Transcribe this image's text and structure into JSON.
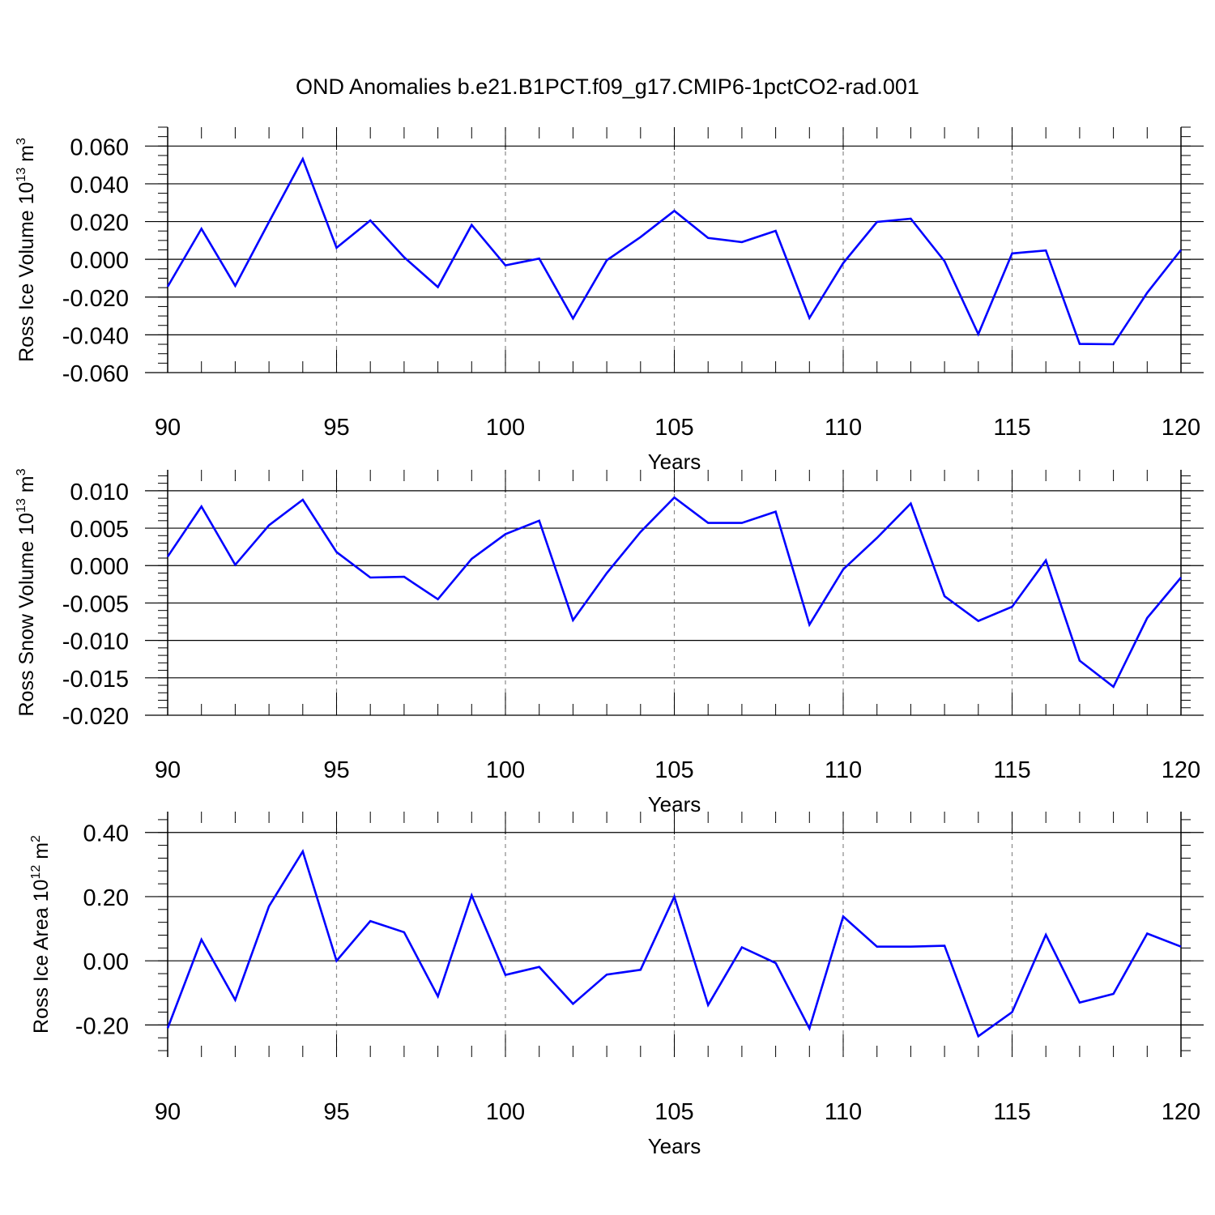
{
  "figure": {
    "title": "OND Anomalies b.e21.B1PCT.f09_g17.CMIP6-1pctCO2-rad.001"
  },
  "colors": {
    "line": "#0000ff",
    "axis": "#000000",
    "grid": "#8a8a8a"
  },
  "chart_data": [
    {
      "type": "line",
      "xlabel": "Years",
      "ylabel": "Ross Ice Volume 10^13 m^3",
      "ylabel_parts": {
        "main": "Ross Ice Volume 10",
        "exp": "13",
        "unit": " m",
        "unit_exp": "3"
      },
      "xlim": [
        90,
        120
      ],
      "ylim": [
        -0.06,
        0.07
      ],
      "x_ticks": [
        "90",
        "95",
        "100",
        "105",
        "110",
        "115",
        "120"
      ],
      "y_ticks": [
        {
          "value": 0.06,
          "label": "0.060"
        },
        {
          "value": 0.04,
          "label": "0.040"
        },
        {
          "value": 0.02,
          "label": "0.020"
        },
        {
          "value": 0.0,
          "label": "0.000"
        },
        {
          "value": -0.02,
          "label": "-0.020"
        },
        {
          "value": -0.04,
          "label": "-0.040"
        },
        {
          "value": -0.06,
          "label": "-0.060"
        }
      ],
      "grid": "vertical dashed at major x ticks",
      "x": [
        90,
        91,
        92,
        93,
        94,
        95,
        96,
        97,
        98,
        99,
        100,
        101,
        102,
        103,
        104,
        105,
        106,
        107,
        108,
        109,
        110,
        111,
        112,
        113,
        114,
        115,
        116,
        117,
        118,
        119,
        120
      ],
      "y": [
        -0.0145,
        0.0162,
        -0.014,
        0.0198,
        0.0532,
        0.0061,
        0.0206,
        0.0011,
        -0.0147,
        0.0182,
        -0.0032,
        0.0004,
        -0.0313,
        -0.0005,
        0.0118,
        0.0257,
        0.0113,
        0.0091,
        0.0151,
        -0.0311,
        -0.002,
        0.0198,
        0.0215,
        -0.001,
        -0.0396,
        0.0031,
        0.0047,
        -0.0448,
        -0.045,
        -0.0177,
        0.005
      ]
    },
    {
      "type": "line",
      "xlabel": "Years",
      "ylabel": "Ross Snow Volume 10^13 m^3",
      "ylabel_parts": {
        "main": "Ross Snow Volume 10",
        "exp": "13",
        "unit": " m",
        "unit_exp": "3"
      },
      "xlim": [
        90,
        120
      ],
      "ylim": [
        -0.02,
        0.0128
      ],
      "x_ticks": [
        "90",
        "95",
        "100",
        "105",
        "110",
        "115",
        "120"
      ],
      "y_ticks": [
        {
          "value": 0.01,
          "label": "0.010"
        },
        {
          "value": 0.005,
          "label": "0.005"
        },
        {
          "value": 0.0,
          "label": "0.000"
        },
        {
          "value": -0.005,
          "label": "-0.005"
        },
        {
          "value": -0.01,
          "label": "-0.010"
        },
        {
          "value": -0.015,
          "label": "-0.015"
        },
        {
          "value": -0.02,
          "label": "-0.020"
        }
      ],
      "grid": "vertical dashed at major x ticks",
      "x": [
        90,
        91,
        92,
        93,
        94,
        95,
        96,
        97,
        98,
        99,
        100,
        101,
        102,
        103,
        104,
        105,
        106,
        107,
        108,
        109,
        110,
        111,
        112,
        113,
        114,
        115,
        116,
        117,
        118,
        119,
        120
      ],
      "y": [
        0.0012,
        0.0079,
        0.0001,
        0.0054,
        0.0088,
        0.0018,
        -0.0016,
        -0.0015,
        -0.0045,
        0.0009,
        0.0042,
        0.006,
        -0.0073,
        -0.001,
        0.0045,
        0.0091,
        0.0057,
        0.0057,
        0.0072,
        -0.0079,
        -0.0005,
        0.0037,
        0.0083,
        -0.0041,
        -0.0074,
        -0.0055,
        0.0007,
        -0.0127,
        -0.0162,
        -0.007,
        -0.0016
      ]
    },
    {
      "type": "line",
      "xlabel": "Years",
      "ylabel": "Ross Ice Area 10^12 m^2",
      "ylabel_parts": {
        "main": "Ross Ice Area 10",
        "exp": "12",
        "unit": " m",
        "unit_exp": "2"
      },
      "xlim": [
        90,
        120
      ],
      "ylim": [
        -0.3,
        0.465
      ],
      "x_ticks": [
        "90",
        "95",
        "100",
        "105",
        "110",
        "115",
        "120"
      ],
      "y_ticks": [
        {
          "value": 0.4,
          "label": "0.40"
        },
        {
          "value": 0.2,
          "label": "0.20"
        },
        {
          "value": 0.0,
          "label": "0.00"
        },
        {
          "value": -0.2,
          "label": "-0.20"
        }
      ],
      "grid": "vertical dashed at major x ticks",
      "x": [
        90,
        91,
        92,
        93,
        94,
        95,
        96,
        97,
        98,
        99,
        100,
        101,
        102,
        103,
        104,
        105,
        106,
        107,
        108,
        109,
        110,
        111,
        112,
        113,
        114,
        115,
        116,
        117,
        118,
        119,
        120
      ],
      "y": [
        -0.21,
        0.066,
        -0.122,
        0.17,
        0.341,
        0.0,
        0.124,
        0.089,
        -0.111,
        0.204,
        -0.044,
        -0.019,
        -0.134,
        -0.043,
        -0.028,
        0.2,
        -0.138,
        0.042,
        -0.007,
        -0.211,
        0.138,
        0.044,
        0.044,
        0.047,
        -0.235,
        -0.16,
        0.081,
        -0.13,
        -0.103,
        0.085,
        0.044
      ]
    }
  ]
}
